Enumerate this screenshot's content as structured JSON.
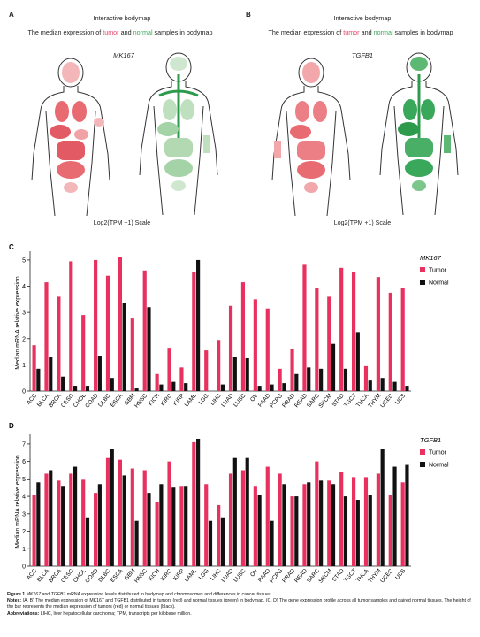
{
  "panel_a": {
    "label": "A",
    "title": "Interactive bodymap",
    "subtitle_pre": "The median expression of ",
    "subtitle_tumor": "tumor",
    "subtitle_mid": " and ",
    "subtitle_normal": "normal",
    "subtitle_post": " samples in bodymap",
    "gene": "MK167",
    "scale": "Log2(TPM +1) Scale"
  },
  "panel_b": {
    "label": "B",
    "title": "Interactive bodymap",
    "subtitle_pre": "The median expression of ",
    "subtitle_tumor": "tumor",
    "subtitle_mid": " and ",
    "subtitle_normal": "normal",
    "subtitle_post": " samples in bodymap",
    "gene": "TGFB1",
    "scale": "Log2(TPM +1) Scale"
  },
  "colors": {
    "tumor": "#e8315f",
    "normal": "#111111",
    "tumor_text": "#e8456a",
    "normal_text": "#3aa85a"
  },
  "chart_data": [
    {
      "label": "C",
      "type": "bar",
      "gene": "MK167",
      "ylabel": "Median mRNA relative expression",
      "ylim": [
        0,
        5.2
      ],
      "yticks": [
        0,
        1,
        2,
        3,
        4,
        5
      ],
      "legend": {
        "tumor": "Tumor",
        "normal": "Normal"
      },
      "categories": [
        "ACC",
        "BLCA",
        "BRCA",
        "CESC",
        "CHOL",
        "COAD",
        "DLBC",
        "ESCA",
        "GBM",
        "HNSC",
        "KICH",
        "KIRC",
        "KIRP",
        "LAML",
        "LGG",
        "LIHC",
        "LUAD",
        "LUSC",
        "OV",
        "PAAD",
        "PCPG",
        "PRAD",
        "READ",
        "SARC",
        "SKCM",
        "STAD",
        "TGCT",
        "THCA",
        "THYM",
        "UCEC",
        "UCS"
      ],
      "series": [
        {
          "name": "Tumor",
          "values": [
            1.75,
            4.15,
            3.6,
            4.95,
            2.9,
            5.0,
            4.4,
            5.1,
            2.8,
            4.6,
            0.65,
            1.65,
            0.9,
            4.55,
            1.55,
            1.95,
            3.25,
            4.15,
            3.5,
            3.15,
            0.85,
            1.6,
            4.85,
            3.95,
            3.6,
            4.7,
            4.55,
            0.95,
            4.35,
            3.75,
            3.95
          ]
        },
        {
          "name": "Normal",
          "values": [
            0.85,
            1.3,
            0.55,
            0.2,
            0.2,
            1.35,
            0.5,
            3.35,
            0.1,
            3.2,
            0.25,
            0.35,
            0.3,
            5.0,
            0,
            0.25,
            1.3,
            1.25,
            0.2,
            0.25,
            0.3,
            0.65,
            0.9,
            0.85,
            1.8,
            0.85,
            2.25,
            0.4,
            0.5,
            0.35,
            0.2
          ]
        }
      ]
    },
    {
      "label": "D",
      "type": "bar",
      "gene": "TGFB1",
      "ylabel": "Median mRNA relative expression",
      "ylim": [
        0,
        7.4
      ],
      "yticks": [
        0,
        1,
        2,
        3,
        4,
        5,
        6,
        7
      ],
      "legend": {
        "tumor": "Tumor",
        "normal": "Normal"
      },
      "categories": [
        "ACC",
        "BLCA",
        "BRCA",
        "CESC",
        "CHOL",
        "COAD",
        "DLBC",
        "ESCA",
        "GBM",
        "HNSC",
        "KICH",
        "KIRC",
        "KIRP",
        "LAML",
        "LGG",
        "LIHC",
        "LUAD",
        "LUSC",
        "OV",
        "PAAD",
        "PCPG",
        "PRAD",
        "READ",
        "SARC",
        "SKCM",
        "STAD",
        "TGCT",
        "THCA",
        "THYM",
        "UCEC",
        "UCS"
      ],
      "series": [
        {
          "name": "Tumor",
          "values": [
            4.1,
            5.3,
            4.9,
            5.3,
            5.0,
            4.2,
            6.2,
            6.1,
            5.6,
            5.5,
            3.7,
            6.0,
            4.6,
            7.1,
            4.7,
            3.5,
            5.3,
            5.5,
            4.6,
            5.7,
            5.3,
            4.0,
            4.7,
            6.0,
            4.9,
            5.4,
            5.1,
            5.1,
            5.3,
            4.1,
            4.8
          ]
        },
        {
          "name": "Normal",
          "values": [
            4.8,
            5.5,
            4.6,
            5.7,
            2.8,
            4.7,
            6.7,
            5.2,
            2.6,
            4.2,
            4.7,
            4.5,
            4.6,
            7.3,
            2.6,
            2.8,
            6.2,
            6.2,
            4.1,
            2.6,
            4.7,
            4.0,
            4.8,
            4.9,
            4.7,
            4.0,
            3.8,
            4.1,
            6.7,
            5.7,
            5.8
          ]
        }
      ]
    }
  ],
  "caption": {
    "line1_bold": "Figure 1",
    "line1_gene1": "MK167",
    "line1_and": " and ",
    "line1_gene2": "TGFB1",
    "line1_rest": " mRNA expression levels distributed in bodymap and chromosomes and differences in cancer tissues.",
    "notes_label": "Notes:",
    "notes_text": " (A, B) The median expression of MK167 and TGFB1 distributed in tumors (red) and normal tissues (green) in bodymap. (C, D) The gene expression profile across all tumor samples and paired normal tissues. The height of the bar represents the median expression of tumors (red) or normal tissues (black).",
    "abbrev_label": "Abbreviations:",
    "abbrev_text": " LIHC, liver hepatocellular carcinoma; TPM, transcripts per kilobase million."
  }
}
